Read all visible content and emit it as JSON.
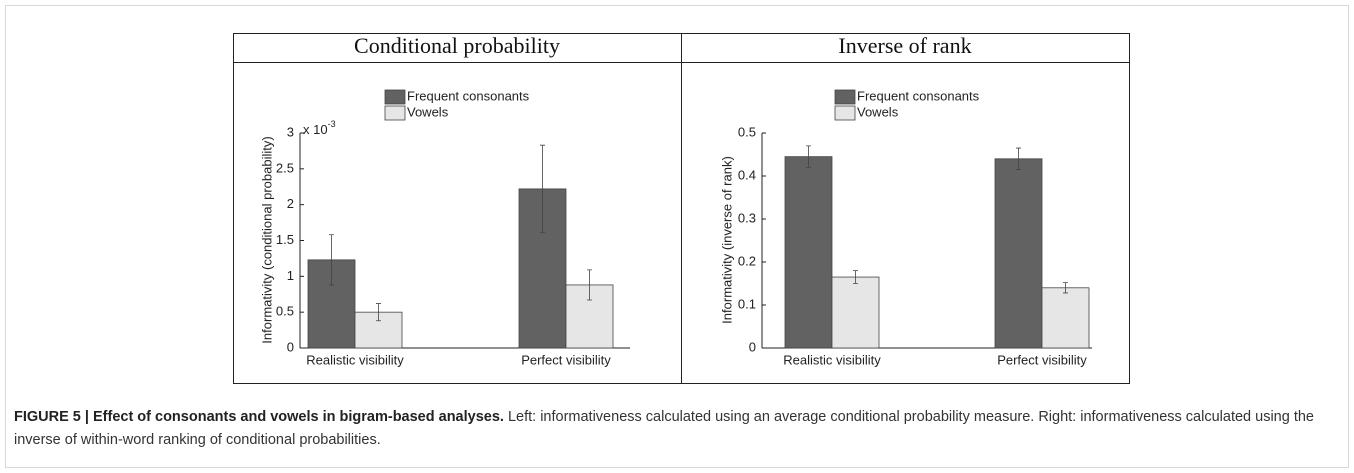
{
  "chart_data": [
    {
      "type": "bar",
      "title": "Conditional probability",
      "ylabel": "Informativity (conditional probability)",
      "y_multiplier": "x 10",
      "y_multiplier_exponent": "-3",
      "categories": [
        "Realistic visibility",
        "Perfect visibility"
      ],
      "series": [
        {
          "name": "Frequent consonants",
          "color": "#626262",
          "values": [
            1.23,
            2.22
          ],
          "errors": [
            0.35,
            0.61
          ]
        },
        {
          "name": "Vowels",
          "color": "#e6e6e6",
          "values": [
            0.5,
            0.88
          ],
          "errors": [
            0.12,
            0.21
          ]
        }
      ],
      "ylim": [
        0,
        3
      ],
      "yticks": [
        0,
        0.5,
        1,
        1.5,
        2,
        2.5,
        3
      ],
      "grid": false
    },
    {
      "type": "bar",
      "title": "Inverse of rank",
      "ylabel": "Informativity (inverse of rank)",
      "categories": [
        "Realistic visibility",
        "Perfect visibility"
      ],
      "series": [
        {
          "name": "Frequent consonants",
          "color": "#626262",
          "values": [
            0.445,
            0.44
          ],
          "errors": [
            0.025,
            0.025
          ]
        },
        {
          "name": "Vowels",
          "color": "#e6e6e6",
          "values": [
            0.165,
            0.14
          ],
          "errors": [
            0.015,
            0.012
          ]
        }
      ],
      "ylim": [
        0,
        0.5
      ],
      "yticks": [
        0,
        0.1,
        0.2,
        0.3,
        0.4,
        0.5
      ],
      "grid": false
    }
  ],
  "caption": {
    "label": "FIGURE 5 | Effect of consonants and vowels in bigram-based analyses.",
    "text": "Left: informativeness calculated using an average conditional probability measure. Right: informativeness calculated using the inverse of within-word ranking of conditional probabilities."
  }
}
